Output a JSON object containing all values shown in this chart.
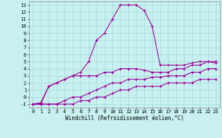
{
  "xlabel": "Windchill (Refroidissement éolien,°C)",
  "background_color": "#c8f0f0",
  "grid_color": "#a0d8d8",
  "line_color": "#990099",
  "xlim": [
    -0.5,
    23.5
  ],
  "ylim": [
    -1.5,
    13.5
  ],
  "xticks": [
    0,
    1,
    2,
    3,
    4,
    5,
    6,
    7,
    8,
    9,
    10,
    11,
    12,
    13,
    14,
    15,
    16,
    17,
    18,
    19,
    20,
    21,
    22,
    23
  ],
  "yticks": [
    -1,
    0,
    1,
    2,
    3,
    4,
    5,
    6,
    7,
    8,
    9,
    10,
    11,
    12,
    13
  ],
  "line1_x": [
    0,
    1,
    2,
    3,
    4,
    5,
    6,
    7,
    8,
    9,
    10,
    11,
    12,
    13,
    14,
    15,
    16,
    17,
    18,
    19,
    20,
    21,
    22,
    23
  ],
  "line1_y": [
    -1,
    -0.8,
    1.5,
    2,
    2.5,
    3,
    3.5,
    5,
    8,
    9,
    11,
    13,
    13,
    13,
    12.2,
    10,
    4.5,
    4.5,
    4.5,
    4.5,
    4.8,
    5,
    5,
    4.8
  ],
  "line2_x": [
    0,
    1,
    2,
    3,
    4,
    5,
    6,
    7,
    8,
    9,
    10,
    11,
    12,
    13,
    14,
    15,
    16,
    17,
    18,
    19,
    20,
    21,
    22,
    23
  ],
  "line2_y": [
    -1,
    -1,
    1.5,
    2,
    2.5,
    3,
    3,
    3,
    3,
    3.5,
    3.5,
    4,
    4,
    4,
    3.8,
    3.5,
    3.5,
    3.5,
    4,
    4,
    4.5,
    4.5,
    5,
    5
  ],
  "line3_x": [
    0,
    1,
    2,
    3,
    4,
    5,
    6,
    7,
    8,
    9,
    10,
    11,
    12,
    13,
    14,
    15,
    16,
    17,
    18,
    19,
    20,
    21,
    22,
    23
  ],
  "line3_y": [
    -1,
    -1,
    -1,
    -1,
    -0.5,
    0,
    0,
    0.5,
    1,
    1.5,
    2,
    2,
    2.5,
    2.5,
    2.5,
    2.8,
    2.8,
    3,
    3,
    3,
    3.5,
    3.5,
    4,
    4
  ],
  "line4_x": [
    0,
    1,
    2,
    3,
    4,
    5,
    6,
    7,
    8,
    9,
    10,
    11,
    12,
    13,
    14,
    15,
    16,
    17,
    18,
    19,
    20,
    21,
    22,
    23
  ],
  "line4_y": [
    -1,
    -1,
    -1,
    -1,
    -1,
    -1,
    -0.5,
    -0.5,
    0,
    0,
    0.5,
    1,
    1,
    1.5,
    1.5,
    1.5,
    1.5,
    2,
    2,
    2,
    2,
    2.5,
    2.5,
    2.5
  ]
}
